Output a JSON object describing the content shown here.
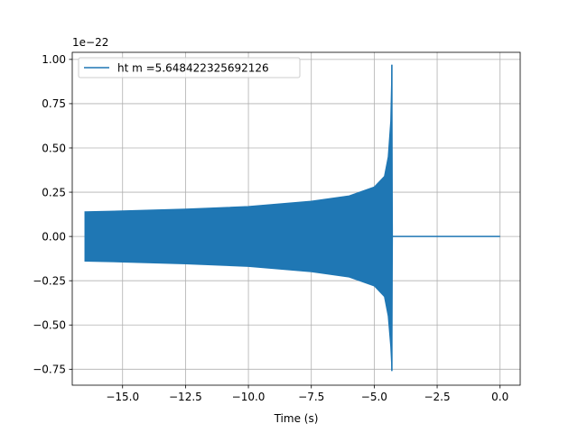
{
  "chart_data": {
    "type": "line",
    "title": "",
    "xlabel": "Time (s)",
    "ylabel": "",
    "y_offset_label": "1e−22",
    "xlim": [
      -17.0,
      0.8
    ],
    "ylim": [
      -0.84,
      1.04
    ],
    "grid": true,
    "legend_position": "top-left",
    "x_ticks": [
      -15.0,
      -12.5,
      -10.0,
      -7.5,
      -5.0,
      -2.5,
      0.0
    ],
    "x_tick_labels": [
      "−15.0",
      "−12.5",
      "−10.0",
      "−7.5",
      "−5.0",
      "−2.5",
      "0.0"
    ],
    "y_ticks": [
      -0.75,
      -0.5,
      -0.25,
      0.0,
      0.25,
      0.5,
      0.75,
      1.0
    ],
    "y_tick_labels": [
      "−0.75",
      "−0.50",
      "−0.25",
      "0.00",
      "0.25",
      "0.50",
      "0.75",
      "1.00"
    ],
    "series": [
      {
        "name": "ht m =5.648422325692126",
        "color": "#1f77b4",
        "x_start": -16.5,
        "merger_time": -4.3,
        "x_end": 0.0,
        "envelope_upper": [
          [
            -16.5,
            0.14
          ],
          [
            -15.0,
            0.145
          ],
          [
            -12.5,
            0.155
          ],
          [
            -10.0,
            0.17
          ],
          [
            -7.5,
            0.2
          ],
          [
            -6.0,
            0.23
          ],
          [
            -5.0,
            0.28
          ],
          [
            -4.6,
            0.34
          ],
          [
            -4.45,
            0.45
          ],
          [
            -4.35,
            0.65
          ],
          [
            -4.3,
            0.97
          ],
          [
            -4.27,
            0.0
          ]
        ],
        "envelope_lower": [
          [
            -16.5,
            -0.14
          ],
          [
            -15.0,
            -0.145
          ],
          [
            -12.5,
            -0.155
          ],
          [
            -10.0,
            -0.17
          ],
          [
            -7.5,
            -0.2
          ],
          [
            -6.0,
            -0.23
          ],
          [
            -5.0,
            -0.28
          ],
          [
            -4.6,
            -0.34
          ],
          [
            -4.45,
            -0.45
          ],
          [
            -4.35,
            -0.62
          ],
          [
            -4.3,
            -0.76
          ],
          [
            -4.27,
            0.0
          ]
        ]
      }
    ]
  }
}
